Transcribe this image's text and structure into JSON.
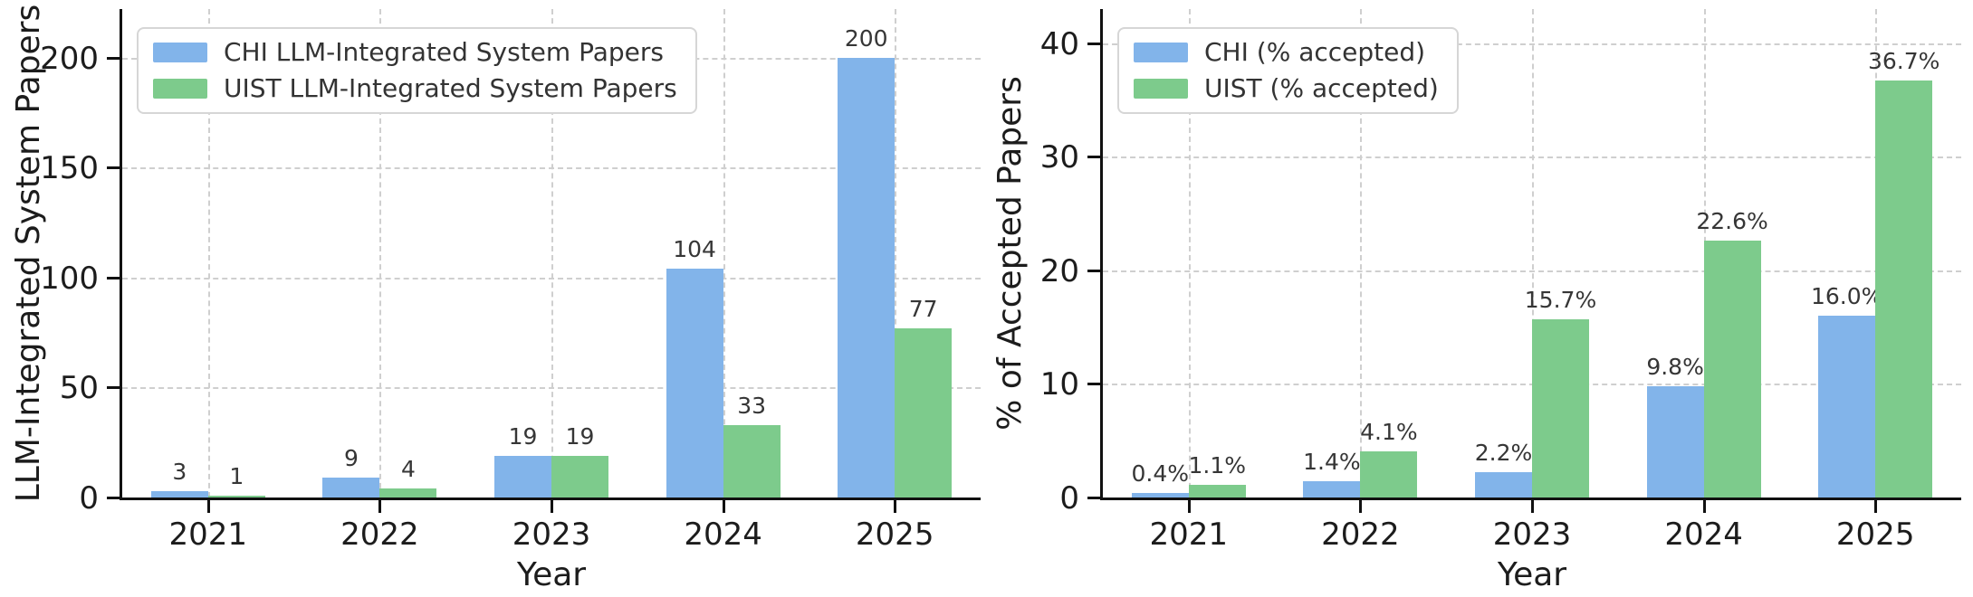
{
  "colors": {
    "chi_blue": "#82B4EA",
    "uist_green": "#7DCB8C",
    "grid": "#cfcfcf",
    "spine": "#111111",
    "tick_text": "#1c1c1c",
    "value_label_text": "#363636",
    "legend_border": "#d6d6d6",
    "background": "#ffffff"
  },
  "chart_data": [
    {
      "type": "bar",
      "title": "",
      "xlabel": "Year",
      "ylabel": "LLM-Integrated System Papers",
      "categories": [
        "2021",
        "2022",
        "2023",
        "2024",
        "2025"
      ],
      "series": [
        {
          "name": "CHI LLM-Integrated System Papers",
          "color": "#82B4EA",
          "values": [
            3,
            9,
            19,
            104,
            200
          ],
          "labels": [
            "3",
            "9",
            "19",
            "104",
            "200"
          ]
        },
        {
          "name": "UIST LLM-Integrated System Papers",
          "color": "#7DCB8C",
          "values": [
            1,
            4,
            19,
            33,
            77
          ],
          "labels": [
            "1",
            "4",
            "19",
            "33",
            "77"
          ]
        }
      ],
      "yticks": [
        0,
        50,
        100,
        150,
        200
      ],
      "ylim": [
        0,
        222
      ],
      "grid": true,
      "legend_position": "upper-left"
    },
    {
      "type": "bar",
      "title": "",
      "xlabel": "Year",
      "ylabel": "% of Accepted Papers",
      "categories": [
        "2021",
        "2022",
        "2023",
        "2024",
        "2025"
      ],
      "series": [
        {
          "name": "CHI (% accepted)",
          "color": "#82B4EA",
          "values": [
            0.4,
            1.4,
            2.2,
            9.8,
            16.0
          ],
          "labels": [
            "0.4%",
            "1.4%",
            "2.2%",
            "9.8%",
            "16.0%"
          ]
        },
        {
          "name": "UIST (% accepted)",
          "color": "#7DCB8C",
          "values": [
            1.1,
            4.1,
            15.7,
            22.6,
            36.7
          ],
          "labels": [
            "1.1%",
            "4.1%",
            "15.7%",
            "22.6%",
            "36.7%"
          ]
        }
      ],
      "yticks": [
        0,
        10,
        20,
        30,
        40
      ],
      "ylim": [
        0,
        43
      ],
      "grid": true,
      "legend_position": "upper-left"
    }
  ]
}
